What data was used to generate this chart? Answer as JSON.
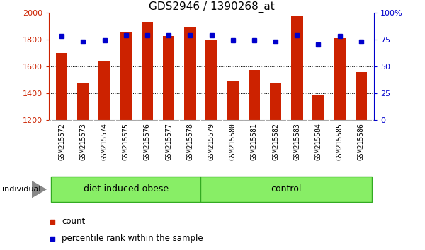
{
  "title": "GDS2946 / 1390268_at",
  "categories": [
    "GSM215572",
    "GSM215573",
    "GSM215574",
    "GSM215575",
    "GSM215576",
    "GSM215577",
    "GSM215578",
    "GSM215579",
    "GSM215580",
    "GSM215581",
    "GSM215582",
    "GSM215583",
    "GSM215584",
    "GSM215585",
    "GSM215586"
  ],
  "bar_values": [
    1700,
    1480,
    1640,
    1855,
    1930,
    1825,
    1895,
    1800,
    1495,
    1575,
    1478,
    1975,
    1390,
    1810,
    1555
  ],
  "dot_values": [
    78,
    73,
    74,
    79,
    79,
    79,
    79,
    79,
    74,
    74,
    73,
    79,
    70,
    78,
    73
  ],
  "bar_color": "#cc2200",
  "dot_color": "#0000cc",
  "ylim_left": [
    1200,
    2000
  ],
  "ylim_right": [
    0,
    100
  ],
  "yticks_left": [
    1200,
    1400,
    1600,
    1800,
    2000
  ],
  "yticks_right": [
    0,
    25,
    50,
    75,
    100
  ],
  "group1_label": "diet-induced obese",
  "group2_label": "control",
  "group1_count": 7,
  "group2_count": 8,
  "individual_label": "individual",
  "legend_count": "count",
  "legend_pct": "percentile rank within the sample",
  "bar_width": 0.55,
  "group_bg_color": "#88ee66",
  "tick_bg_color": "#cccccc",
  "title_fontsize": 11,
  "tick_fontsize": 7,
  "right_ytick_100_pct": true
}
